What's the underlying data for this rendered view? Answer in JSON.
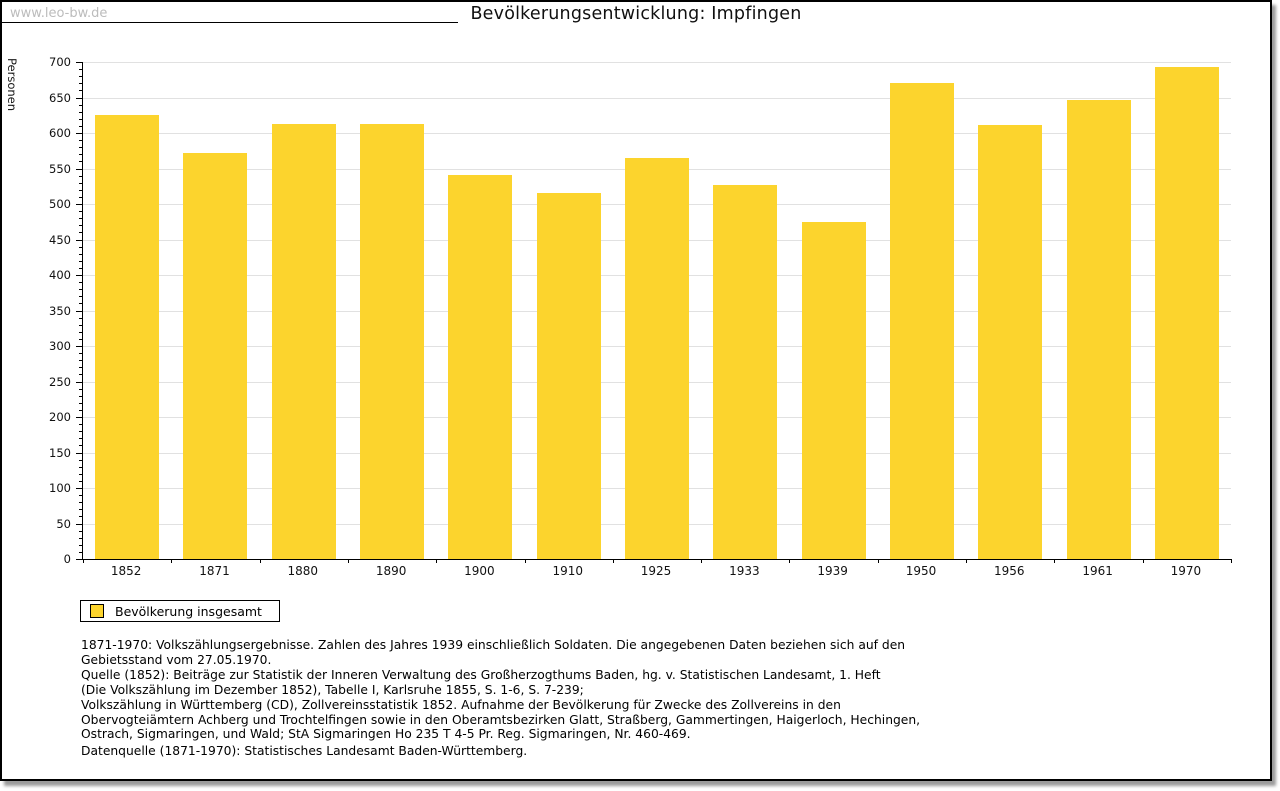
{
  "watermark": "www.leo-bw.de",
  "title": "Bevölkerungsentwicklung: Impfingen",
  "chart_data": {
    "type": "bar",
    "title": "Bevölkerungsentwicklung: Impfingen",
    "categories": [
      "1852",
      "1871",
      "1880",
      "1890",
      "1900",
      "1910",
      "1925",
      "1933",
      "1939",
      "1950",
      "1956",
      "1961",
      "1970"
    ],
    "values": [
      625,
      572,
      612,
      613,
      541,
      515,
      565,
      527,
      474,
      670,
      611,
      647,
      693
    ],
    "series_name": "Bevölkerung insgesamt",
    "xlabel": "",
    "ylabel": "Personen",
    "ylim": [
      0,
      700
    ],
    "ytick_step": 50,
    "yminor_step": 10,
    "grid": true,
    "legend_position": "bottom-left",
    "bar_color": "#fcd42d",
    "grid_color": "#e1e1e1"
  },
  "legend": {
    "label": "Bevölkerung insgesamt",
    "swatch_color": "#fcd42d"
  },
  "footer": {
    "lines": [
      "1871-1970: Volkszählungsergebnisse. Zahlen des Jahres 1939 einschließlich Soldaten. Die angegebenen Daten beziehen sich auf den",
      "Gebietsstand vom 27.05.1970.",
      "Quelle (1852): Beiträge zur Statistik der Inneren Verwaltung des Großherzogthums Baden, hg. v. Statistischen Landesamt, 1. Heft",
      "(Die Volkszählung im Dezember 1852), Tabelle I, Karlsruhe 1855, S. 1-6, S. 7-239;",
      "Volkszählung in Württemberg (CD), Zollvereinsstatistik 1852. Aufnahme der Bevölkerung für Zwecke des Zollvereins in den",
      "Obervogteiämtern Achberg und Trochtelfingen sowie in den Oberamtsbezirken Glatt, Straßberg, Gammertingen, Haigerloch, Hechingen,",
      "Ostrach, Sigmaringen, und Wald; StA Sigmaringen Ho 235 T 4-5 Pr. Reg. Sigmaringen, Nr. 460-469."
    ],
    "datasource": "Datenquelle (1871-1970): Statistisches Landesamt Baden-Württemberg."
  },
  "colors": {
    "bar": "#fcd42d",
    "gridline": "#e1e1e1",
    "axis": "#000000",
    "watermark": "#bcbcbc",
    "shadow": "#9c9c9c",
    "text": "#000000"
  }
}
